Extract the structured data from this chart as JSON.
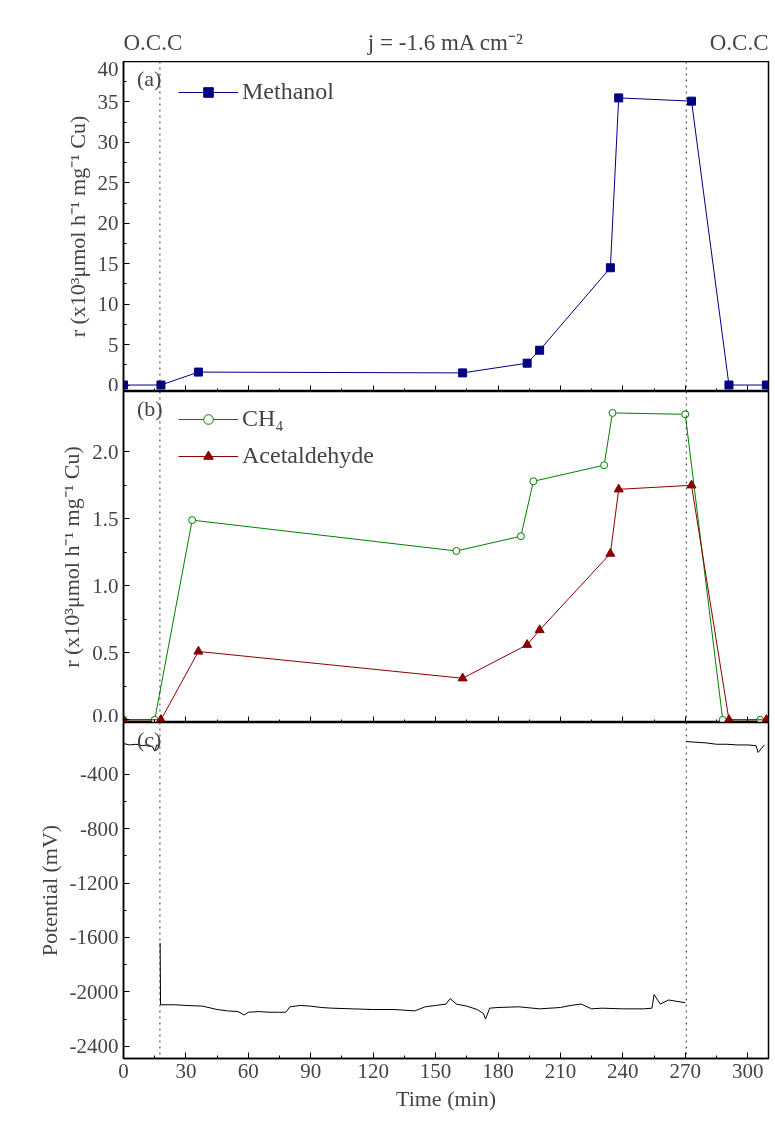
{
  "chart_data": [
    {
      "type": "line",
      "title": "j = -1.6 mA cm⁻²",
      "ylabel": "r (x10³μmol h⁻¹ mg⁻¹ Cu)",
      "annotations": [
        "(a)",
        "O.C.C",
        "O.C.C"
      ],
      "series": [
        {
          "name": "Methanol",
          "color": "#000080",
          "marker": "square",
          "x": [
            0,
            18,
            36,
            163,
            194,
            200,
            234,
            238,
            273,
            291,
            309
          ],
          "values": [
            0,
            0,
            1.6,
            1.5,
            2.7,
            4.3,
            14.5,
            35.5,
            35.1,
            0,
            0
          ]
        }
      ],
      "xlim": [
        0,
        310
      ],
      "xticks": [
        0,
        30,
        60,
        90,
        120,
        150,
        180,
        210,
        240,
        270,
        300
      ],
      "ylim": [
        -0.8,
        40
      ],
      "yticks": [
        0,
        5,
        10,
        15,
        20,
        25,
        30,
        35,
        40
      ],
      "ref_lines": [
        {
          "axis": "x",
          "value": 17.5,
          "color": "#000000",
          "line_style": "dotted"
        },
        {
          "axis": "x",
          "value": 270.5,
          "color": "#000000",
          "line_style": "dotted"
        }
      ],
      "legend": "top left",
      "tick_labels": "y",
      "grid": false,
      "line_style": "solid"
    },
    {
      "type": "line",
      "ylabel": "r (x10³μmol h⁻¹ mg⁻¹ Cu)",
      "annotations": [
        "(b)"
      ],
      "series": [
        {
          "name": "CH₄",
          "color": "#008000",
          "marker": "circle",
          "x": [
            0,
            15,
            33,
            160,
            191,
            197,
            231,
            235,
            270,
            288,
            306
          ],
          "values": [
            0,
            0,
            1.49,
            1.26,
            1.37,
            1.78,
            1.9,
            2.29,
            2.28,
            0,
            0
          ]
        },
        {
          "name": "Acetaldehyde",
          "color": "#8b0000",
          "marker": "triangle",
          "x": [
            0,
            18,
            36,
            163,
            194,
            200,
            234,
            238,
            273,
            291,
            309
          ],
          "values": [
            0,
            0,
            0.51,
            0.31,
            0.56,
            0.67,
            1.24,
            1.72,
            1.75,
            0,
            0
          ]
        }
      ],
      "xlim": [
        0,
        310
      ],
      "xticks": [
        0,
        30,
        60,
        90,
        120,
        150,
        180,
        210,
        240,
        270,
        300
      ],
      "ylim": [
        -0.02,
        2.45
      ],
      "yticks": [
        {
          "value": 0,
          "label": "0.0"
        },
        {
          "value": 0.5,
          "label": "0.5"
        },
        {
          "value": 1,
          "label": "1.0"
        },
        {
          "value": 1.5,
          "label": "1.5"
        },
        {
          "value": 2,
          "label": "2.0"
        }
      ],
      "ref_lines": [
        {
          "axis": "x",
          "value": 17.5,
          "color": "#000000",
          "line_style": "dotted"
        },
        {
          "axis": "x",
          "value": 270.5,
          "color": "#000000",
          "line_style": "dotted"
        }
      ],
      "legend": "top left",
      "tick_labels": "y",
      "grid": false,
      "line_style": "solid"
    },
    {
      "type": "line",
      "xlabel": "Time (min)",
      "ylabel": "Potential (mV)",
      "annotations": [
        "(c)"
      ],
      "series": [
        {
          "color": "#000000",
          "marker": "none",
          "x": [
            0,
            3,
            6,
            9,
            12,
            14,
            15,
            16,
            17,
            17.4,
            17.6,
            17.8,
            25,
            30,
            38,
            45,
            50,
            55,
            58,
            60,
            65,
            70,
            75,
            78,
            80,
            85,
            90,
            95,
            100,
            110,
            120,
            130,
            140,
            145,
            150,
            155,
            157,
            160,
            165,
            170,
            173,
            174,
            176,
            180,
            190,
            200,
            210,
            215,
            220,
            225,
            230,
            240,
            250,
            254,
            255,
            258,
            262,
            266,
            270,
            270.4,
            270.6,
            275,
            280,
            285,
            290,
            295,
            300,
            304,
            305,
            308
          ],
          "values": [
            -175,
            -185,
            -180,
            -190,
            -185,
            -200,
            -230,
            -185,
            -190,
            null,
            -1640,
            -2095,
            -2095,
            -2100,
            -2105,
            -2130,
            -2140,
            -2145,
            -2170,
            -2150,
            -2145,
            -2150,
            -2150,
            -2150,
            -2110,
            -2100,
            -2105,
            -2115,
            -2120,
            -2125,
            -2130,
            -2130,
            -2140,
            -2110,
            -2100,
            -2090,
            -2050,
            -2090,
            -2105,
            -2130,
            -2160,
            -2200,
            -2120,
            -2115,
            -2110,
            -2125,
            -2115,
            -2100,
            -2090,
            -2125,
            -2120,
            -2125,
            -2125,
            -2120,
            -2020,
            -2090,
            -2060,
            -2070,
            -2080,
            null,
            -160,
            -165,
            -170,
            -180,
            -180,
            -185,
            -185,
            -190,
            -240,
            -185
          ]
        }
      ],
      "xlim": [
        0,
        310
      ],
      "xticks": [
        0,
        30,
        60,
        90,
        120,
        150,
        180,
        210,
        240,
        270,
        300
      ],
      "ylim": [
        -2490,
        -20
      ],
      "yticks": [
        -400,
        -800,
        -1200,
        -1600,
        -2000,
        -2400
      ],
      "ref_lines": [
        {
          "axis": "x",
          "value": 17.5,
          "color": "#000000",
          "line_style": "dotted"
        },
        {
          "axis": "x",
          "value": 270.5,
          "color": "#000000",
          "line_style": "dotted"
        }
      ],
      "grid": false,
      "line_style": "solid"
    }
  ]
}
